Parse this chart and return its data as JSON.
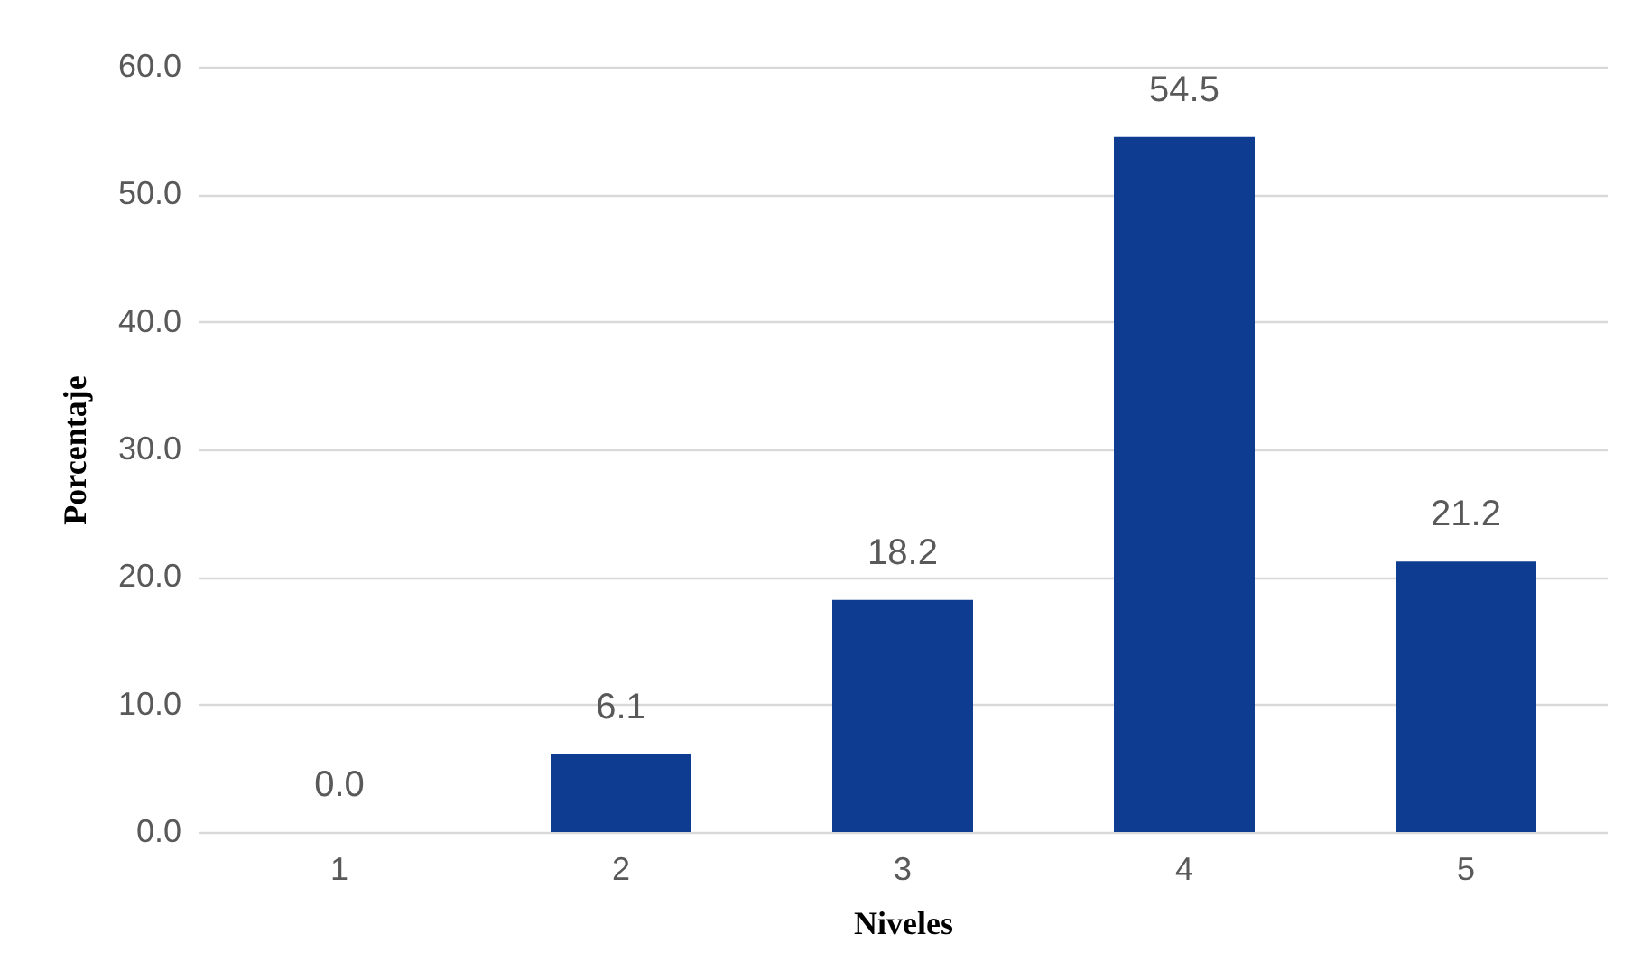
{
  "chart_data": {
    "type": "bar",
    "xlabel": "Niveles",
    "ylabel": "Porcentaje",
    "categories": [
      "1",
      "2",
      "3",
      "4",
      "5"
    ],
    "values": [
      0.0,
      6.1,
      18.2,
      54.5,
      21.2
    ],
    "value_labels": [
      "0.0",
      "6.1",
      "18.2",
      "54.5",
      "21.2"
    ],
    "color": "#0e3c91",
    "ylim": [
      0,
      60
    ],
    "yticks": [
      {
        "value": 0,
        "label": "0.0"
      },
      {
        "value": 10,
        "label": "10.0"
      },
      {
        "value": 20,
        "label": "20.0"
      },
      {
        "value": 30,
        "label": "30.0"
      },
      {
        "value": 40,
        "label": "40.0"
      },
      {
        "value": 50,
        "label": "50.0"
      },
      {
        "value": 60,
        "label": "60.0"
      }
    ],
    "grid": "y"
  }
}
